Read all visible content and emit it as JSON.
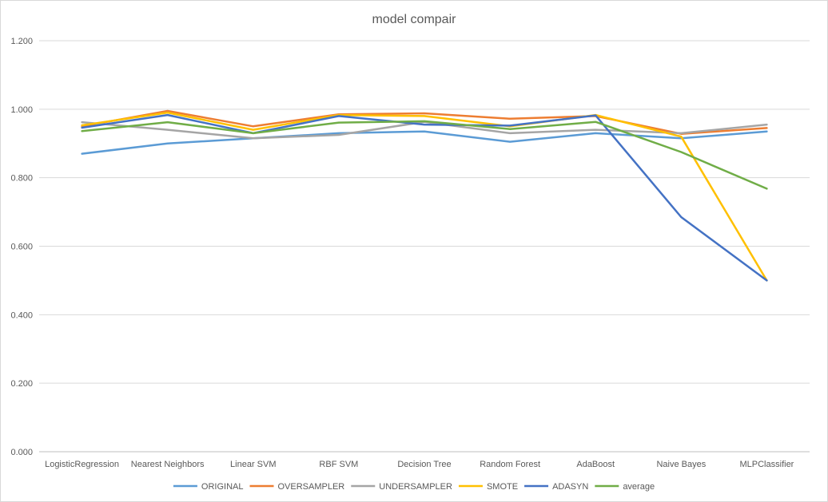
{
  "chart_data": {
    "type": "line",
    "title": "model compair",
    "xlabel": "",
    "ylabel": "",
    "categories": [
      "LogisticRegression",
      "Nearest Neighbors",
      "Linear SVM",
      "RBF SVM",
      "Decision Tree",
      "Random Forest",
      "AdaBoost",
      "Naive Bayes",
      "MLPClassifier"
    ],
    "ylim": [
      0,
      1.2
    ],
    "yticks": [
      0,
      0.2,
      0.4,
      0.6,
      0.8,
      1.0,
      1.2
    ],
    "ytick_labels": [
      "0.000",
      "0.200",
      "0.400",
      "0.600",
      "0.800",
      "1.000",
      "1.200"
    ],
    "grid": true,
    "legend_position": "bottom",
    "series": [
      {
        "name": "ORIGINAL",
        "color": "#5B9BD5",
        "values": [
          0.87,
          0.9,
          0.915,
          0.93,
          0.935,
          0.905,
          0.93,
          0.915,
          0.935
        ]
      },
      {
        "name": "OVERSAMPLER",
        "color": "#ED7D31",
        "values": [
          0.95,
          0.995,
          0.95,
          0.985,
          0.988,
          0.972,
          0.98,
          0.928,
          0.945
        ]
      },
      {
        "name": "UNDERSAMPLER",
        "color": "#A5A5A5",
        "values": [
          0.962,
          0.94,
          0.915,
          0.925,
          0.963,
          0.93,
          0.94,
          0.93,
          0.955
        ]
      },
      {
        "name": "SMOTE",
        "color": "#FFC000",
        "values": [
          0.953,
          0.99,
          0.94,
          0.983,
          0.98,
          0.95,
          0.983,
          0.92,
          0.5
        ]
      },
      {
        "name": "ADASYN",
        "color": "#4472C4",
        "values": [
          0.946,
          0.983,
          0.93,
          0.98,
          0.955,
          0.952,
          0.982,
          0.685,
          0.5
        ]
      },
      {
        "name": "average",
        "color": "#70AD47",
        "values": [
          0.936,
          0.962,
          0.93,
          0.961,
          0.965,
          0.942,
          0.963,
          0.875,
          0.768
        ]
      }
    ]
  }
}
